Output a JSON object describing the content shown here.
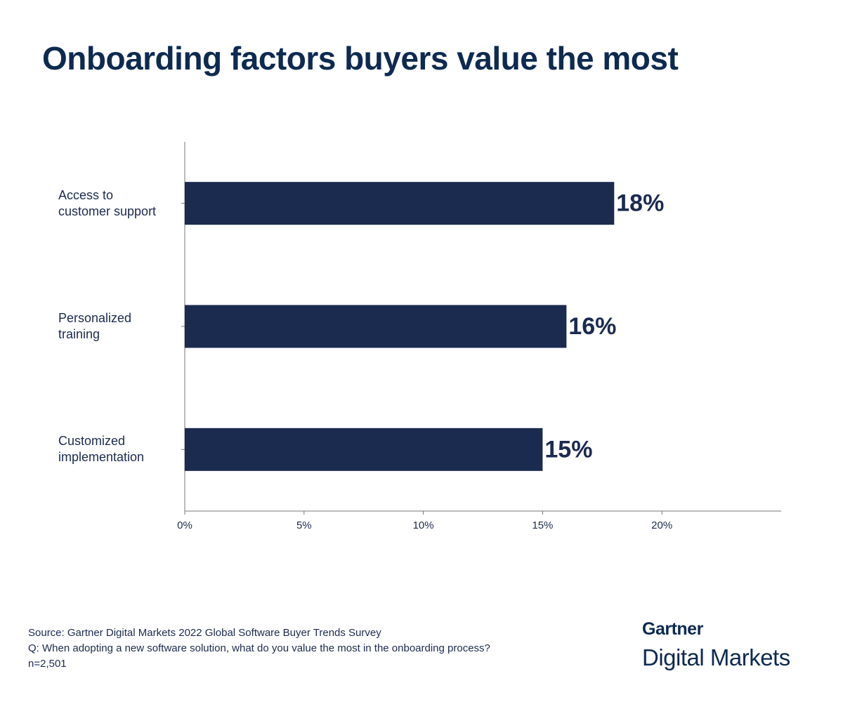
{
  "chart_data": {
    "type": "bar",
    "orientation": "horizontal",
    "title": "Onboarding factors buyers value the most",
    "categories": [
      "Access to\ncustomer support",
      "Personalized\ntraining",
      "Customized\nimplementation"
    ],
    "values": [
      18,
      16,
      15
    ],
    "value_labels": [
      "18%",
      "16%",
      "15%"
    ],
    "color": "#1b2a4f",
    "xlim": [
      0,
      25
    ],
    "xticks": [
      {
        "value": 0,
        "label": "0%"
      },
      {
        "value": 5,
        "label": "5%"
      },
      {
        "value": 10,
        "label": "10%"
      },
      {
        "value": 15,
        "label": "15%"
      },
      {
        "value": 20,
        "label": "20%"
      }
    ],
    "grid": false
  },
  "footer": {
    "lines": [
      "Source: Gartner Digital Markets 2022 Global Software Buyer Trends Survey",
      "Q: When adopting a new software solution, what do you value the most in the onboarding process?",
      "n=2,501"
    ],
    "brand": [
      "Gartner",
      "Digital Markets"
    ]
  }
}
